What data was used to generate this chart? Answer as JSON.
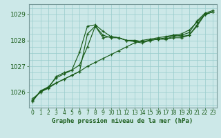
{
  "bg_color": "#cce8e8",
  "grid_color": "#99cccc",
  "line_color": "#1a5c1a",
  "title": "Graphe pression niveau de la mer (hPa)",
  "xlim": [
    -0.5,
    23.5
  ],
  "ylim": [
    1025.4,
    1029.4
  ],
  "yticks": [
    1026,
    1027,
    1028,
    1029
  ],
  "xticks": [
    0,
    1,
    2,
    3,
    4,
    5,
    6,
    7,
    8,
    9,
    10,
    11,
    12,
    13,
    14,
    15,
    16,
    17,
    18,
    19,
    20,
    21,
    22,
    23
  ],
  "series": [
    [
      1025.65,
      1026.05,
      1026.15,
      1026.6,
      1026.75,
      1026.85,
      1027.05,
      1027.75,
      1028.55,
      1028.2,
      1028.1,
      1028.1,
      1028.0,
      1028.0,
      1027.95,
      1028.0,
      1028.05,
      1028.05,
      1028.1,
      1028.1,
      1028.2,
      1028.6,
      1029.0,
      1029.1
    ],
    [
      1025.75,
      1026.0,
      1026.2,
      1026.35,
      1026.5,
      1026.65,
      1026.8,
      1027.0,
      1027.15,
      1027.3,
      1027.45,
      1027.6,
      1027.75,
      1027.9,
      1028.0,
      1028.05,
      1028.1,
      1028.15,
      1028.2,
      1028.25,
      1028.4,
      1028.7,
      1029.0,
      1029.1
    ],
    [
      1025.7,
      1026.0,
      1026.15,
      1026.35,
      1026.5,
      1026.65,
      1026.8,
      1028.25,
      1028.55,
      1028.1,
      1028.15,
      1028.1,
      1028.0,
      1027.95,
      1027.9,
      1028.0,
      1028.05,
      1028.05,
      1028.15,
      1028.2,
      1028.3,
      1028.75,
      1029.05,
      1029.15
    ],
    [
      1025.65,
      1026.05,
      1026.2,
      1026.55,
      1026.7,
      1026.85,
      1027.55,
      1028.55,
      1028.6,
      1028.35,
      1028.15,
      1028.1,
      1028.0,
      1028.0,
      1027.95,
      1028.0,
      1028.05,
      1028.1,
      1028.2,
      1028.15,
      1028.2,
      1028.55,
      1029.0,
      1029.1
    ]
  ]
}
